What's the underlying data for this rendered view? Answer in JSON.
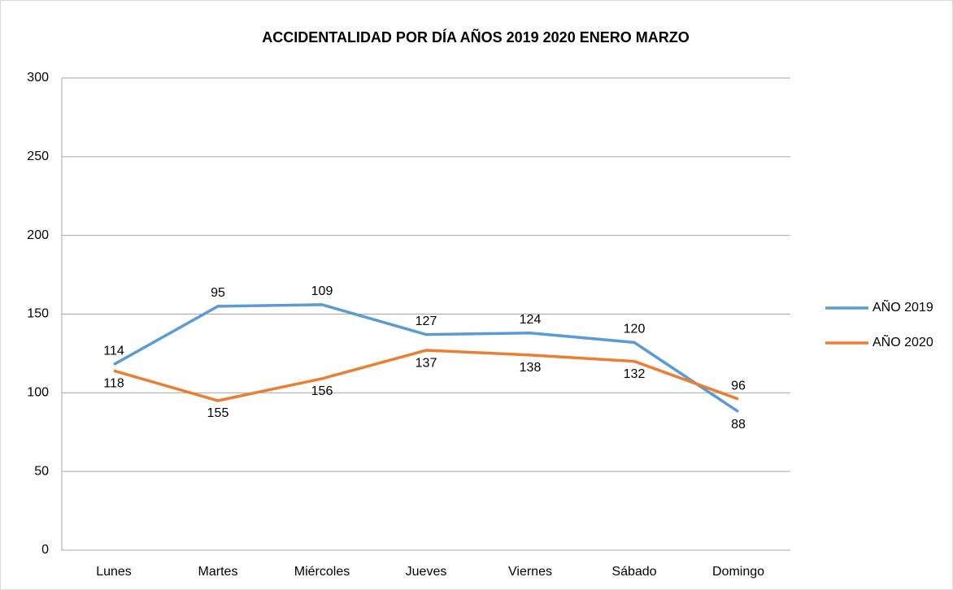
{
  "chart_data": {
    "type": "line",
    "title": "ACCIDENTALIDAD POR DÍA  AÑOS 2019 2020 ENERO MARZO",
    "categories": [
      "Lunes",
      "Martes",
      "Miércoles",
      "Jueves",
      "Viernes",
      "Sábado",
      "Domingo"
    ],
    "series": [
      {
        "name": "AÑO 2019",
        "color": "#5b9bd5",
        "values": [
          118,
          155,
          156,
          137,
          138,
          132,
          88
        ]
      },
      {
        "name": "AÑO 2020",
        "color": "#ed7d31",
        "values": [
          114,
          95,
          109,
          127,
          124,
          120,
          96
        ]
      }
    ],
    "ylim": [
      0,
      300
    ],
    "yticks": [
      0,
      50,
      100,
      150,
      200,
      250,
      300
    ],
    "grid": true,
    "legend": "right"
  }
}
